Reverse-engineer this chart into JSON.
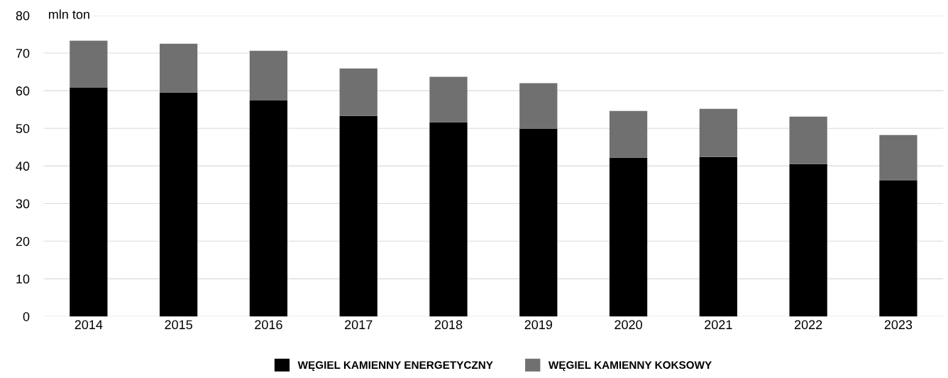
{
  "chart_data": {
    "type": "bar",
    "stacked": true,
    "ylabel": "mln ton",
    "categories": [
      "2014",
      "2015",
      "2016",
      "2017",
      "2018",
      "2019",
      "2020",
      "2021",
      "2022",
      "2023"
    ],
    "series": [
      {
        "name": "WĘGIEL KAMIENNY ENERGETYCZNY",
        "color": "#000000",
        "values": [
          60.8,
          59.5,
          57.4,
          53.3,
          51.6,
          49.9,
          42.2,
          42.4,
          40.5,
          36.2
        ]
      },
      {
        "name": "WĘGIEL KAMIENNY KOKSOWY",
        "color": "#707070",
        "values": [
          12.5,
          13.0,
          13.2,
          12.6,
          12.1,
          12.1,
          12.4,
          12.8,
          12.6,
          12.0
        ]
      }
    ],
    "ylim": [
      0,
      80
    ],
    "yticks": [
      0,
      10,
      20,
      30,
      40,
      50,
      60,
      70,
      80
    ],
    "grid": "y",
    "legend": "bottom"
  }
}
